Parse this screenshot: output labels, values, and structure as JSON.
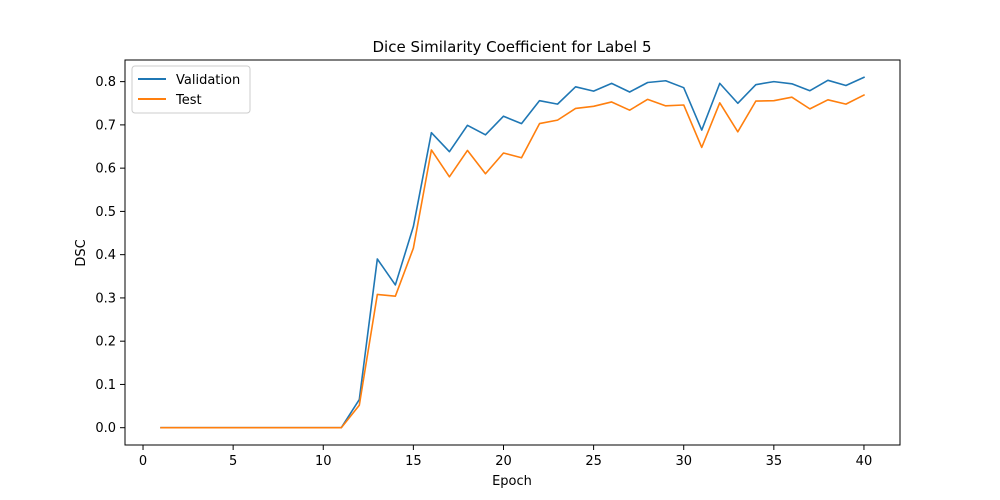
{
  "chart_data": {
    "type": "line",
    "title": "Dice Similarity Coefficient for Label 5",
    "xlabel": "Epoch",
    "ylabel": "DSC",
    "xlim": [
      -1,
      42
    ],
    "ylim": [
      -0.04,
      0.85
    ],
    "xticks": [
      0,
      5,
      10,
      15,
      20,
      25,
      30,
      35,
      40
    ],
    "yticks": [
      0.0,
      0.1,
      0.2,
      0.3,
      0.4,
      0.5,
      0.6,
      0.7,
      0.8
    ],
    "ytick_labels": [
      "0.0",
      "0.1",
      "0.2",
      "0.3",
      "0.4",
      "0.5",
      "0.6",
      "0.7",
      "0.8"
    ],
    "grid": false,
    "legend_position": "upper-left",
    "x": [
      1,
      2,
      3,
      4,
      5,
      6,
      7,
      8,
      9,
      10,
      11,
      12,
      13,
      14,
      15,
      16,
      17,
      18,
      19,
      20,
      21,
      22,
      23,
      24,
      25,
      26,
      27,
      28,
      29,
      30,
      31,
      32,
      33,
      34,
      35,
      36,
      37,
      38,
      39,
      40
    ],
    "series": [
      {
        "name": "Validation",
        "color": "#1f77b4",
        "values": [
          0.0,
          0.0,
          0.0,
          0.0,
          0.0,
          0.0,
          0.0,
          0.0,
          0.0,
          0.0,
          0.0,
          0.065,
          0.39,
          0.33,
          0.465,
          0.682,
          0.638,
          0.699,
          0.677,
          0.72,
          0.703,
          0.756,
          0.748,
          0.788,
          0.778,
          0.796,
          0.776,
          0.798,
          0.802,
          0.786,
          0.688,
          0.796,
          0.75,
          0.793,
          0.8,
          0.795,
          0.779,
          0.803,
          0.791,
          0.81
        ]
      },
      {
        "name": "Test",
        "color": "#ff7f0e",
        "values": [
          0.0,
          0.0,
          0.0,
          0.0,
          0.0,
          0.0,
          0.0,
          0.0,
          0.0,
          0.0,
          0.0,
          0.052,
          0.308,
          0.304,
          0.415,
          0.642,
          0.58,
          0.641,
          0.587,
          0.635,
          0.624,
          0.703,
          0.711,
          0.738,
          0.743,
          0.753,
          0.734,
          0.759,
          0.744,
          0.746,
          0.648,
          0.751,
          0.684,
          0.755,
          0.756,
          0.764,
          0.737,
          0.758,
          0.748,
          0.769
        ]
      }
    ]
  }
}
